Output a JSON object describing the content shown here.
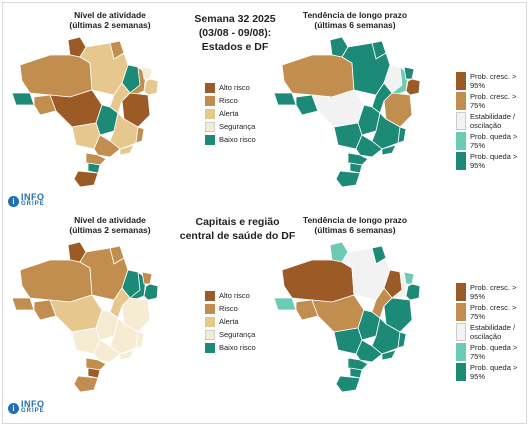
{
  "top_section": {
    "title_lines": [
      "Semana 32 2025",
      "(03/08 - 09/08):",
      "Estados e DF"
    ],
    "left_map_title": [
      "Nível de atividade",
      "(últimas 2 semanas)"
    ],
    "right_map_title": [
      "Tendência de longo prazo",
      "(últimas 6 semanas)"
    ]
  },
  "bottom_section": {
    "title_lines": [
      "Capitais e região",
      "central de saúde do DF"
    ],
    "left_map_title": [
      "Nível de atividade",
      "(últimas 2 semanas)"
    ],
    "right_map_title": [
      "Tendência de longo prazo",
      "(últimas 6 semanas)"
    ]
  },
  "activity_legend": [
    {
      "label": "Alto risco",
      "color": "#9c5b26"
    },
    {
      "label": "Risco",
      "color": "#c28e4f"
    },
    {
      "label": "Alerta",
      "color": "#e6c88e"
    },
    {
      "label": "Segurança",
      "color": "#f5ecd3"
    },
    {
      "label": "Baixo risco",
      "color": "#1c8a77"
    }
  ],
  "trend_legend": [
    {
      "label": "Prob. cresc. > 95%",
      "color": "#9c5b26"
    },
    {
      "label": "Prob. cresc. > 75%",
      "color": "#c28e4f"
    },
    {
      "label": "Estabilidade / oscilação",
      "color": "#f2f2f2"
    },
    {
      "label": "Prob. queda > 75%",
      "color": "#6ccbb4"
    },
    {
      "label": "Prob. queda > 95%",
      "color": "#1c8a77"
    }
  ],
  "logo": {
    "line1": "INFO",
    "line2": "GRIPE",
    "icon": "info-icon"
  }
}
